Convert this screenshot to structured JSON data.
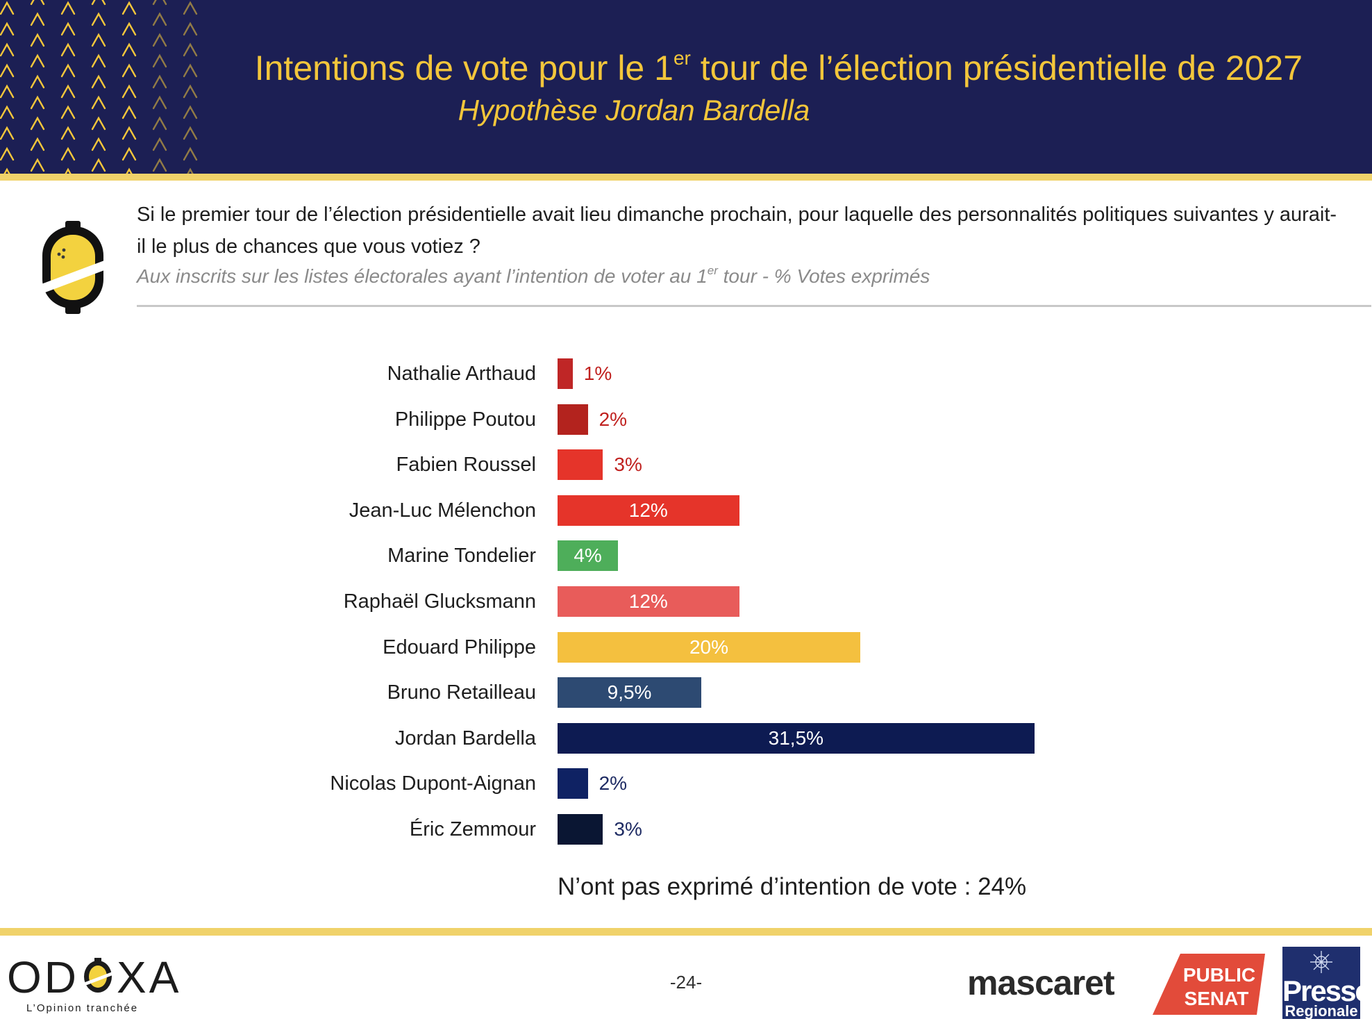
{
  "header": {
    "title_before": "Intentions de vote pour le 1",
    "title_sup": "er",
    "title_after": " tour de l’élection présidentielle de 2027",
    "subtitle": "Hypothèse Jordan Bardella"
  },
  "question": {
    "text": "Si le premier tour de l’élection présidentielle avait lieu dimanche prochain, pour laquelle des personnalités politiques suivantes y aurait-il le plus de chances que vous votiez ?",
    "base_before": "Aux inscrits sur les listes électorales ayant l’intention de voter au 1",
    "base_sup": "er",
    "base_after": " tour  - % Votes exprimés"
  },
  "chart_data": {
    "type": "bar",
    "orientation": "horizontal",
    "categories": [
      "Nathalie Arthaud",
      "Philippe Poutou",
      "Fabien Roussel",
      "Jean-Luc Mélenchon",
      "Marine Tondelier",
      "Raphaël Glucksmann",
      "Edouard Philippe",
      "Bruno Retailleau",
      "Jordan Bardella",
      "Nicolas Dupont-Aignan",
      "Éric Zemmour"
    ],
    "values": [
      1,
      2,
      3,
      12,
      4,
      12,
      20,
      9.5,
      31.5,
      2,
      3
    ],
    "value_labels": [
      "1%",
      "2%",
      "3%",
      "12%",
      "4%",
      "12%",
      "20%",
      "9,5%",
      "31,5%",
      "2%",
      "3%"
    ],
    "colors": [
      "#bf2626",
      "#b3231e",
      "#e5342a",
      "#e5342a",
      "#4eae5a",
      "#e85c5a",
      "#f4c03f",
      "#2d4a72",
      "#0d1b52",
      "#0f2263",
      "#0a1633"
    ],
    "label_colors_outside": [
      "#c0211f",
      "#c0211f",
      "#c0211f",
      "#ffffff",
      "#ffffff",
      "#ffffff",
      "#ffffff",
      "#ffffff",
      "#ffffff",
      "#1e2b63",
      "#1e2b63"
    ],
    "xlim": [
      0,
      31.5
    ],
    "note": "N’ont pas exprimé d’intention de vote : 24%"
  },
  "footer": {
    "odoxa_left": "OD",
    "odoxa_right": "XA",
    "odoxa_tagline": "L’Opinion tranchée",
    "page_number": "-24-",
    "mascaret": "mascaret",
    "public_senat_1": "PUBLIC",
    "public_senat_2": "SENAT",
    "presse_1": "Presse",
    "presse_2": "Regionale"
  }
}
